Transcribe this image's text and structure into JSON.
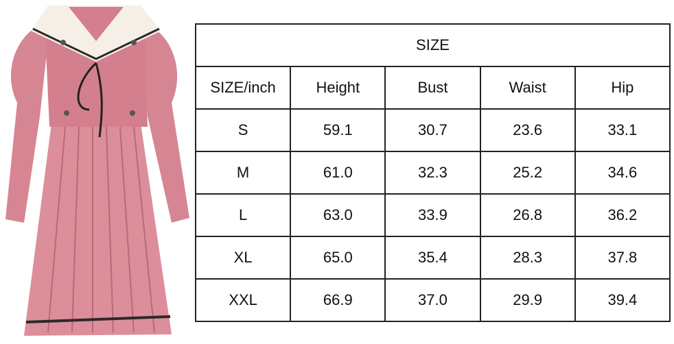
{
  "product": {
    "image": "pink sailor-collar school uniform dress",
    "colors": {
      "dress": "#d98a96",
      "collar": "#f6efe8",
      "trim": "#2a2a2a"
    }
  },
  "size_chart": {
    "title": "SIZE",
    "headers": [
      "SIZE/inch",
      "Height",
      "Bust",
      "Waist",
      "Hip"
    ],
    "rows": [
      [
        "S",
        "59.1",
        "30.7",
        "23.6",
        "33.1"
      ],
      [
        "M",
        "61.0",
        "32.3",
        "25.2",
        "34.6"
      ],
      [
        "L",
        "63.0",
        "33.9",
        "26.8",
        "36.2"
      ],
      [
        "XL",
        "65.0",
        "35.4",
        "28.3",
        "37.8"
      ],
      [
        "XXL",
        "66.9",
        "37.0",
        "29.9",
        "39.4"
      ]
    ]
  }
}
